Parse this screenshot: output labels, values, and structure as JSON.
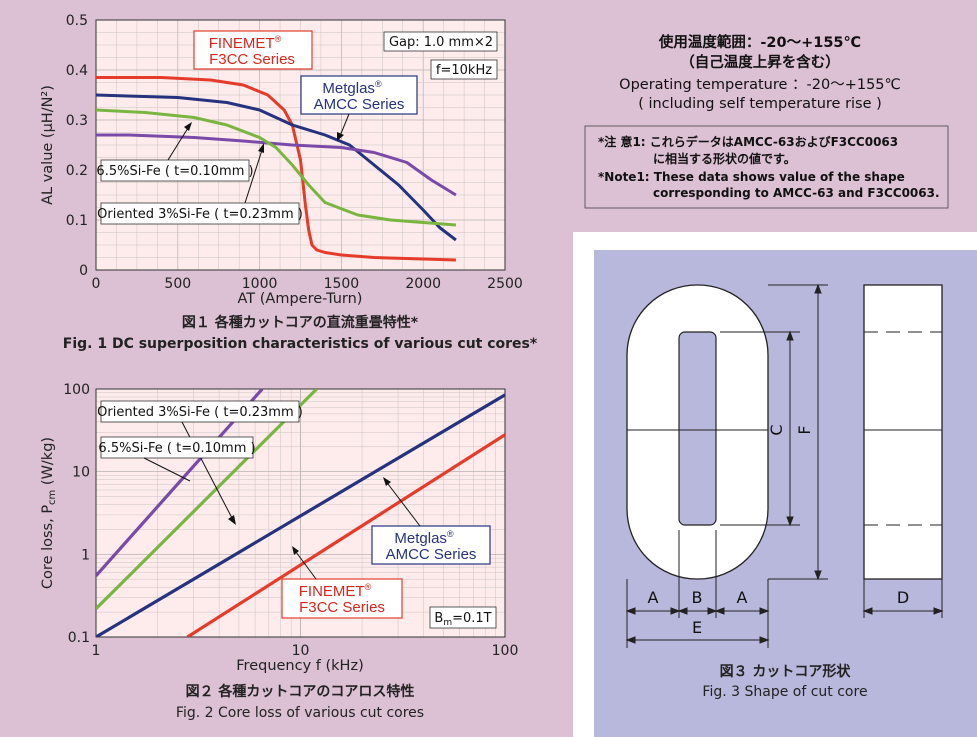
{
  "colors": {
    "finemet": "#e63b2a",
    "metglas": "#25327e",
    "sife65": "#7a4aa8",
    "oriented": "#7ab541",
    "brand_text": "#d8261c",
    "brand_blue": "#25327e",
    "panel_bg": "#dcc0d4",
    "plot_bg": "#fdeceb",
    "shape_panel": "#b8b8dc"
  },
  "fig1": {
    "caption_ja": "図１ 各種カットコアの直流重畳特性*",
    "caption_en": "Fig. 1  DC superposition characteristics of various cut cores*",
    "gap_label": "Gap: 1.0 mm×2",
    "freq_label": "f=10kHz",
    "finemet_label_1": "FINEMET",
    "finemet_label_reg": "®",
    "finemet_label_2": "F3CC Series",
    "metglas_label_1": "Metglas",
    "metglas_label_reg": "®",
    "metglas_label_2": "AMCC Series",
    "sife65_label": "6.5%Si-Fe ( t=0.10mm )",
    "oriented_label": "Oriented 3%Si-Fe ( t=0.23mm )"
  },
  "fig2": {
    "caption_ja": "図２ 各種カットコアのコアロス特性",
    "caption_en": "Fig. 2  Core loss of various cut cores",
    "bm_label": "B",
    "bm_sub": "m",
    "bm_value": "=0.1T",
    "oriented_label": "Oriented 3%Si-Fe ( t=0.23mm )",
    "sife65_label": "6.5%Si-Fe ( t=0.10mm )",
    "metglas_label_1": "Metglas",
    "metglas_label_reg": "®",
    "metglas_label_2": "AMCC Series",
    "finemet_label_1": "FINEMET",
    "finemet_label_reg": "®",
    "finemet_label_2": "F3CC Series"
  },
  "info": {
    "temp_ja": "使用温度範囲：-20～+155℃",
    "temp_ja_note": "（自己温度上昇を含む）",
    "temp_en": "Operating temperature ：-20～+155℃",
    "temp_en_note": "( including self temperature rise )",
    "note_ja_1": "*注 意1: これらデータはAMCC-63およびF3CC0063",
    "note_ja_2": "に相当する形状の値です。",
    "note_en_1": "*Note1: These data shows value of the shape",
    "note_en_2": "corresponding to AMCC-63 and F3CC0063."
  },
  "fig3": {
    "caption_ja": "図３ カットコア形状",
    "caption_en": "Fig. 3  Shape of cut core",
    "dim_a1": "A",
    "dim_b": "B",
    "dim_a2": "A",
    "dim_e": "E",
    "dim_c": "C",
    "dim_f": "F",
    "dim_d": "D"
  },
  "chart_data": [
    {
      "type": "line",
      "title": "",
      "xlabel": "AT (Ampere-Turn)",
      "ylabel": "AL value (μH/N²)",
      "xlim": [
        0,
        2500
      ],
      "ylim": [
        0,
        0.5
      ],
      "xticks": [
        "0",
        "500",
        "1000",
        "1500",
        "2000",
        "2500"
      ],
      "yticks": [
        "0",
        "0.1",
        "0.2",
        "0.3",
        "0.4",
        "0.5"
      ],
      "grid": true,
      "series": [
        {
          "name": "FINEMET F3CC Series",
          "color": "#e63b2a",
          "x": [
            0,
            400,
            700,
            900,
            1050,
            1150,
            1200,
            1250,
            1280,
            1300,
            1320,
            1350,
            1400,
            1500,
            1700,
            2000,
            2200
          ],
          "y": [
            0.385,
            0.385,
            0.38,
            0.37,
            0.35,
            0.32,
            0.29,
            0.22,
            0.13,
            0.08,
            0.05,
            0.04,
            0.035,
            0.03,
            0.025,
            0.022,
            0.02
          ]
        },
        {
          "name": "Metglas AMCC Series",
          "color": "#25327e",
          "x": [
            0,
            500,
            800,
            1000,
            1200,
            1400,
            1550,
            1700,
            1850,
            2000,
            2100,
            2200
          ],
          "y": [
            0.35,
            0.345,
            0.335,
            0.32,
            0.29,
            0.27,
            0.25,
            0.21,
            0.17,
            0.12,
            0.085,
            0.06
          ]
        },
        {
          "name": "6.5%Si-Fe (t=0.10mm)",
          "color": "#7a4aa8",
          "x": [
            0,
            200,
            600,
            900,
            1200,
            1500,
            1700,
            1900,
            2050,
            2200
          ],
          "y": [
            0.27,
            0.27,
            0.265,
            0.258,
            0.25,
            0.245,
            0.235,
            0.215,
            0.18,
            0.15
          ]
        },
        {
          "name": "Oriented 3%Si-Fe (t=0.23mm)",
          "color": "#7ab541",
          "x": [
            0,
            300,
            600,
            800,
            1000,
            1100,
            1200,
            1300,
            1400,
            1600,
            1800,
            2000,
            2200
          ],
          "y": [
            0.32,
            0.315,
            0.305,
            0.29,
            0.265,
            0.245,
            0.21,
            0.17,
            0.135,
            0.11,
            0.1,
            0.095,
            0.09
          ]
        }
      ]
    },
    {
      "type": "line",
      "title": "",
      "xlabel": "Frequency f (kHz)",
      "ylabel": "Core loss, Pcm (W/kg)",
      "xscale": "log",
      "yscale": "log",
      "xlim": [
        1,
        100
      ],
      "ylim": [
        0.1,
        100
      ],
      "xticks": [
        "1",
        "10",
        "100"
      ],
      "yticks": [
        "0.1",
        "1",
        "10",
        "100"
      ],
      "grid": true,
      "series": [
        {
          "name": "6.5%Si-Fe (t=0.10mm)",
          "color": "#7a4aa8",
          "x": [
            1,
            6.5
          ],
          "y": [
            0.55,
            100
          ]
        },
        {
          "name": "Oriented 3%Si-Fe (t=0.23mm)",
          "color": "#7ab541",
          "x": [
            1,
            12
          ],
          "y": [
            0.22,
            100
          ]
        },
        {
          "name": "Metglas AMCC Series",
          "color": "#25327e",
          "x": [
            1,
            100
          ],
          "y": [
            0.1,
            85
          ]
        },
        {
          "name": "FINEMET F3CC Series",
          "color": "#e63b2a",
          "x": [
            2.8,
            100
          ],
          "y": [
            0.1,
            28
          ]
        }
      ]
    }
  ]
}
